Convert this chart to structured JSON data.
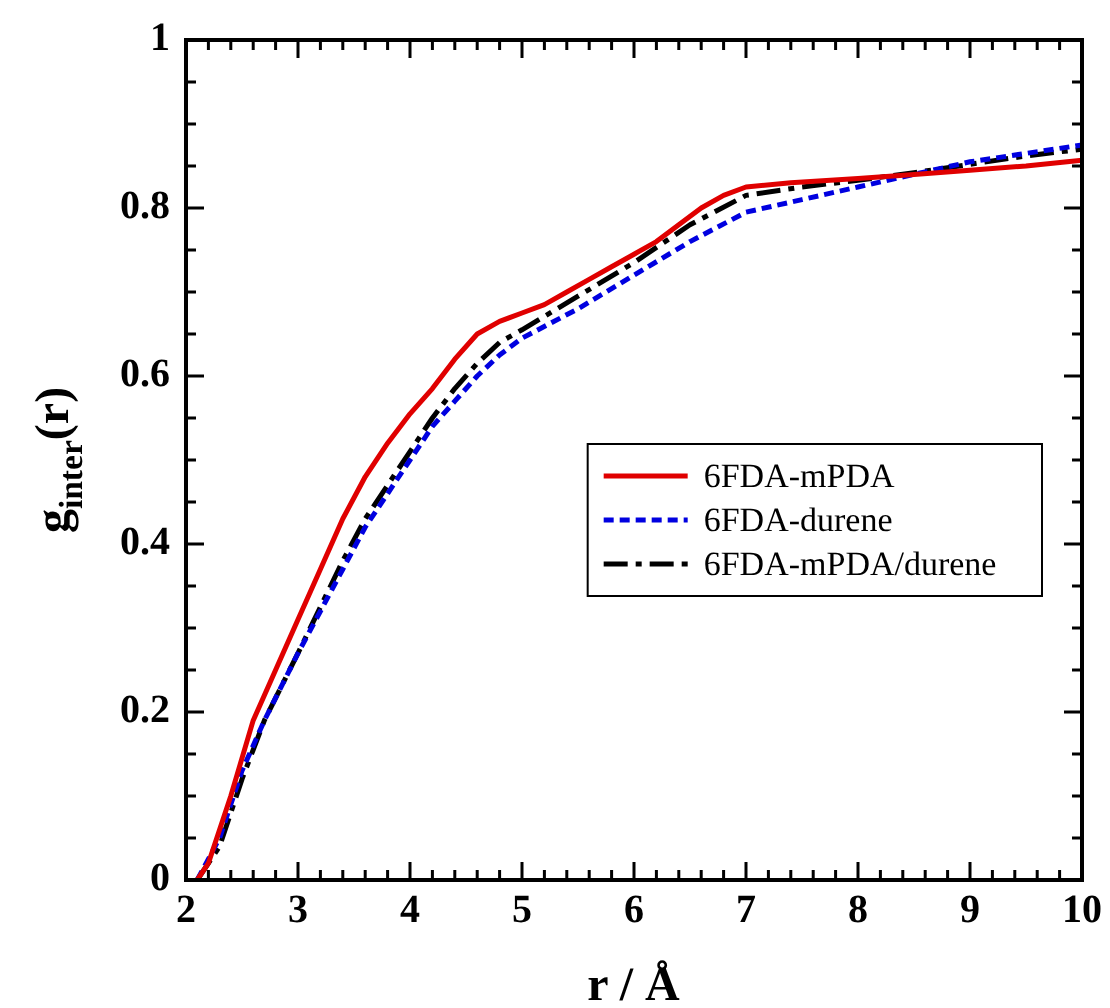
{
  "chart_data": {
    "type": "line",
    "xlabel": "r / Å",
    "ylabel": "g$_{inter}$(r)",
    "xlim": [
      2,
      10
    ],
    "ylim": [
      0,
      1
    ],
    "xticks": [
      2,
      {
        "value": 2.2,
        "label": null
      },
      {
        "value": 2.4,
        "label": null
      },
      {
        "value": 2.6,
        "label": null
      },
      {
        "value": 2.8,
        "label": null
      },
      3,
      {
        "value": 3.2,
        "label": null
      },
      {
        "value": 3.4,
        "label": null
      },
      {
        "value": 3.6,
        "label": null
      },
      {
        "value": 3.8,
        "label": null
      },
      4,
      {
        "value": 4.2,
        "label": null
      },
      {
        "value": 4.4,
        "label": null
      },
      {
        "value": 4.6,
        "label": null
      },
      {
        "value": 4.8,
        "label": null
      },
      5,
      {
        "value": 5.2,
        "label": null
      },
      {
        "value": 5.4,
        "label": null
      },
      {
        "value": 5.6,
        "label": null
      },
      {
        "value": 5.8,
        "label": null
      },
      6,
      {
        "value": 6.2,
        "label": null
      },
      {
        "value": 6.4,
        "label": null
      },
      {
        "value": 6.6,
        "label": null
      },
      {
        "value": 6.8,
        "label": null
      },
      7,
      {
        "value": 7.2,
        "label": null
      },
      {
        "value": 7.4,
        "label": null
      },
      {
        "value": 7.6,
        "label": null
      },
      {
        "value": 7.8,
        "label": null
      },
      8,
      {
        "value": 8.2,
        "label": null
      },
      {
        "value": 8.4,
        "label": null
      },
      {
        "value": 8.6,
        "label": null
      },
      {
        "value": 8.8,
        "label": null
      },
      9,
      {
        "value": 9.2,
        "label": null
      },
      {
        "value": 9.4,
        "label": null
      },
      {
        "value": 9.6,
        "label": null
      },
      {
        "value": 9.8,
        "label": null
      },
      10
    ],
    "yticks": [
      0,
      {
        "value": 0.05,
        "label": null
      },
      {
        "value": 0.1,
        "label": null
      },
      {
        "value": 0.15,
        "label": null
      },
      0.2,
      {
        "value": 0.25,
        "label": null
      },
      {
        "value": 0.3,
        "label": null
      },
      {
        "value": 0.35,
        "label": null
      },
      0.4,
      {
        "value": 0.45,
        "label": null
      },
      {
        "value": 0.5,
        "label": null
      },
      {
        "value": 0.55,
        "label": null
      },
      0.6,
      {
        "value": 0.65,
        "label": null
      },
      {
        "value": 0.7,
        "label": null
      },
      {
        "value": 0.75,
        "label": null
      },
      0.8,
      {
        "value": 0.85,
        "label": null
      },
      {
        "value": 0.9,
        "label": null
      },
      {
        "value": 0.95,
        "label": null
      },
      1
    ],
    "grid": false,
    "legend": "right",
    "marker": "none",
    "series": [
      {
        "name": "6FDA-mPDA",
        "color": "#e00000",
        "line_style": "solid",
        "x": [
          2.1,
          2.2,
          2.4,
          2.6,
          2.8,
          3.0,
          3.2,
          3.4,
          3.6,
          3.8,
          4.0,
          4.2,
          4.4,
          4.6,
          4.8,
          5.0,
          5.2,
          5.4,
          5.6,
          5.8,
          6.0,
          6.2,
          6.4,
          6.6,
          6.8,
          7.0,
          7.4,
          8.0,
          8.5,
          9.0,
          9.5,
          10
        ],
        "values": [
          0,
          0.02,
          0.1,
          0.19,
          0.25,
          0.31,
          0.37,
          0.43,
          0.48,
          0.52,
          0.555,
          0.585,
          0.62,
          0.65,
          0.665,
          0.675,
          0.685,
          0.7,
          0.715,
          0.73,
          0.745,
          0.76,
          0.78,
          0.8,
          0.815,
          0.825,
          0.83,
          0.835,
          0.84,
          0.845,
          0.85,
          0.857
        ]
      },
      {
        "name": "6FDA-durene",
        "color": "#0000e0",
        "line_style": "dotted",
        "x": [
          2.1,
          2.3,
          2.5,
          2.7,
          3.0,
          3.2,
          3.4,
          3.6,
          3.8,
          4.0,
          4.2,
          4.4,
          4.6,
          4.8,
          5.0,
          5.5,
          6.0,
          6.5,
          7.0,
          7.5,
          8.0,
          8.5,
          9.0,
          9.5,
          10
        ],
        "values": [
          0,
          0.05,
          0.13,
          0.19,
          0.27,
          0.32,
          0.37,
          0.42,
          0.46,
          0.5,
          0.54,
          0.57,
          0.6,
          0.625,
          0.645,
          0.68,
          0.72,
          0.76,
          0.795,
          0.81,
          0.825,
          0.84,
          0.855,
          0.865,
          0.875
        ]
      },
      {
        "name": "6FDA-mPDA/durene",
        "color": "#000000",
        "line_style": "dashed",
        "x": [
          2.1,
          2.3,
          2.5,
          2.7,
          3.0,
          3.2,
          3.4,
          3.6,
          3.8,
          4.0,
          4.2,
          4.4,
          4.6,
          4.8,
          5.0,
          5.5,
          6.0,
          6.5,
          7.0,
          7.5,
          8.0,
          8.5,
          9.0,
          9.5,
          10
        ],
        "values": [
          0,
          0.04,
          0.12,
          0.19,
          0.27,
          0.325,
          0.38,
          0.43,
          0.47,
          0.51,
          0.55,
          0.585,
          0.615,
          0.64,
          0.655,
          0.695,
          0.735,
          0.78,
          0.815,
          0.825,
          0.833,
          0.842,
          0.852,
          0.862,
          0.87
        ]
      }
    ]
  }
}
